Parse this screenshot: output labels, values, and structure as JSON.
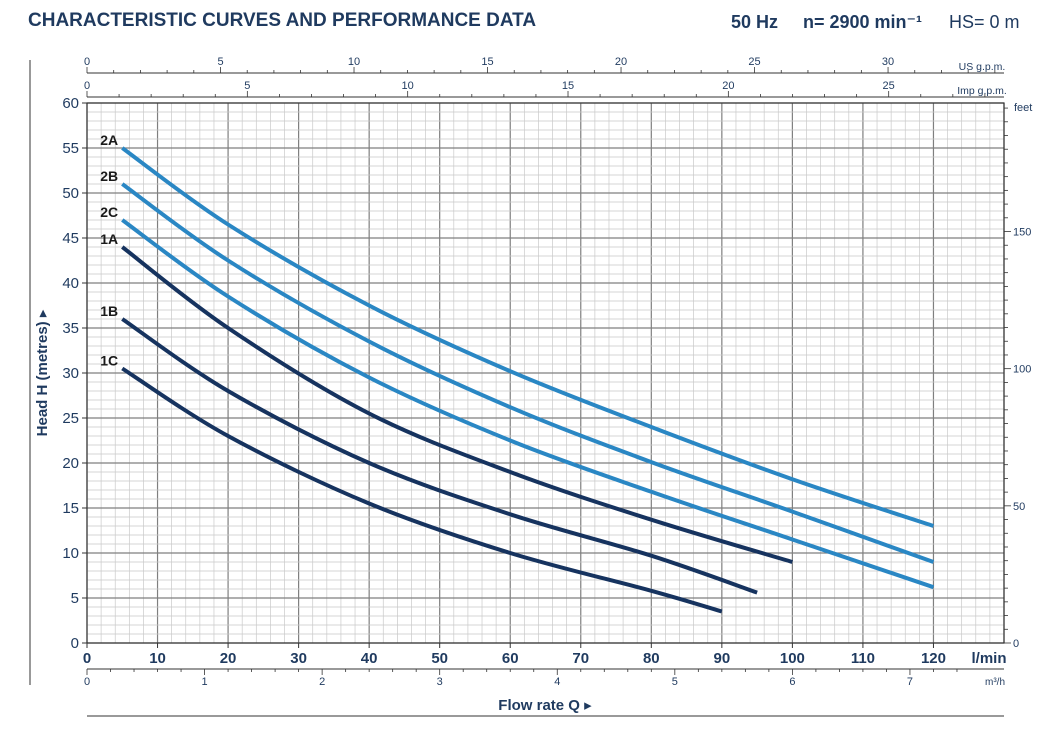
{
  "header": {
    "title": "CHARACTERISTIC CURVES AND PERFORMANCE DATA",
    "freq": "50 Hz",
    "speed": "n= 2900 min⁻¹",
    "hs": "HS= 0 m"
  },
  "chart_data": {
    "type": "line",
    "xlabel": "Flow rate  Q",
    "ylabel": "Head H  (metres)",
    "x_unit": "l/min",
    "xlim": [
      0,
      130
    ],
    "ylim": [
      0,
      60
    ],
    "x_ticks": [
      0,
      10,
      20,
      30,
      40,
      50,
      60,
      70,
      80,
      90,
      100,
      110,
      120
    ],
    "y_ticks": [
      0,
      5,
      10,
      15,
      20,
      25,
      30,
      35,
      40,
      45,
      50,
      55,
      60
    ],
    "secondary_axes": {
      "us_gpm": {
        "label": "US g.p.m.",
        "ticks": [
          0,
          5,
          10,
          15,
          20,
          25,
          30
        ]
      },
      "imp_gpm": {
        "label": "Imp g.p.m.",
        "ticks": [
          0,
          5,
          10,
          15,
          20,
          25
        ]
      },
      "m3h": {
        "label": "m³/h",
        "ticks": [
          0,
          1,
          2,
          3,
          4,
          5,
          6,
          7
        ]
      },
      "feet": {
        "label": "feet",
        "ticks": [
          0,
          50,
          100,
          150
        ]
      }
    },
    "grid": true,
    "colors": {
      "light": "#2a87c4",
      "dark": "#16335f"
    },
    "series": [
      {
        "name": "2A",
        "color": "light",
        "x": [
          5,
          20,
          40,
          60,
          80,
          100,
          120
        ],
        "y": [
          55,
          46.5,
          37.5,
          30.2,
          24,
          18.2,
          13
        ]
      },
      {
        "name": "2B",
        "color": "light",
        "x": [
          5,
          20,
          40,
          60,
          80,
          100,
          120
        ],
        "y": [
          51,
          42.5,
          33.5,
          26.2,
          20.1,
          14.6,
          9
        ]
      },
      {
        "name": "2C",
        "color": "light",
        "x": [
          5,
          20,
          40,
          60,
          80,
          100,
          120
        ],
        "y": [
          47,
          38.5,
          29.5,
          22.5,
          16.8,
          11.5,
          6.2
        ]
      },
      {
        "name": "1A",
        "color": "dark",
        "x": [
          5,
          20,
          40,
          60,
          80,
          100
        ],
        "y": [
          44,
          35,
          25.5,
          19,
          13.7,
          9
        ]
      },
      {
        "name": "1B",
        "color": "dark",
        "x": [
          5,
          20,
          40,
          60,
          80,
          95
        ],
        "y": [
          36,
          28,
          20,
          14.3,
          9.7,
          5.6
        ]
      },
      {
        "name": "1C",
        "color": "dark",
        "x": [
          5,
          20,
          40,
          60,
          80,
          90
        ],
        "y": [
          30.5,
          23,
          15.5,
          10,
          5.8,
          3.5
        ]
      }
    ]
  }
}
